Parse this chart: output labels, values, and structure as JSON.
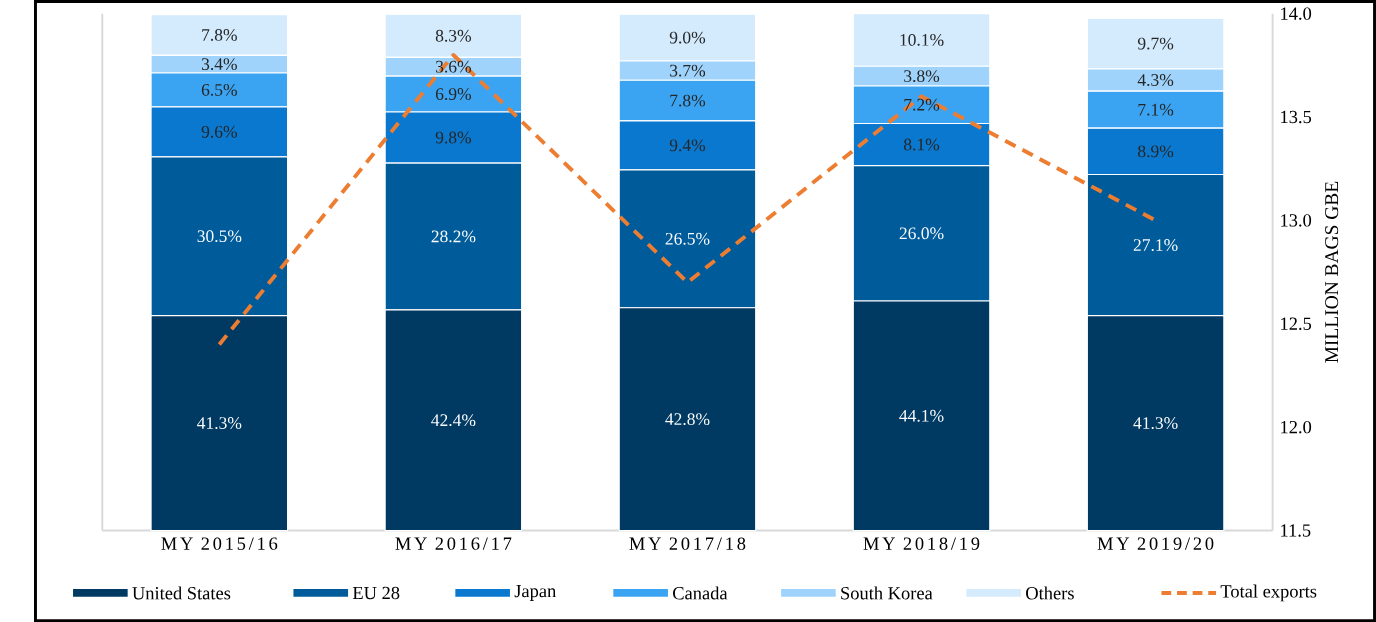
{
  "chart_data": {
    "type": "bar",
    "stacked": true,
    "y2label": "MILLION BAGS GBE",
    "categories": [
      "MY 2015/16",
      "MY 2016/17",
      "MY 2017/18",
      "MY 2018/19",
      "MY 2019/20"
    ],
    "series": [
      {
        "name": "United States",
        "color": "#003a63",
        "values": [
          41.3,
          42.4,
          42.8,
          44.1,
          41.3
        ],
        "value_labels": [
          "41.3%",
          "42.4%",
          "42.8%",
          "44.1%",
          "41.3%"
        ]
      },
      {
        "name": "EU 28",
        "color": "#005b9a",
        "values": [
          30.5,
          28.2,
          26.5,
          26.0,
          27.1
        ],
        "value_labels": [
          "30.5%",
          "28.2%",
          "26.5%",
          "26.0%",
          "27.1%"
        ]
      },
      {
        "name": "Japan",
        "color": "#0a78cf",
        "values": [
          9.6,
          9.8,
          9.4,
          8.1,
          8.9
        ],
        "value_labels": [
          "9.6%",
          "9.8%",
          "9.4%",
          "8.1%",
          "8.9%"
        ]
      },
      {
        "name": "Canada",
        "color": "#3ba4f2",
        "values": [
          6.5,
          6.9,
          7.8,
          7.2,
          7.1
        ],
        "value_labels": [
          "6.5%",
          "6.9%",
          "7.8%",
          "7.2%",
          "7.1%"
        ]
      },
      {
        "name": "South Korea",
        "color": "#9fd3fb",
        "values": [
          3.4,
          3.6,
          3.7,
          3.8,
          4.3
        ],
        "value_labels": [
          "3.4%",
          "3.6%",
          "3.7%",
          "3.8%",
          "4.3%"
        ]
      },
      {
        "name": "Others",
        "color": "#d3ebfd",
        "values": [
          7.8,
          8.3,
          9.0,
          10.1,
          9.7
        ],
        "value_labels": [
          "7.8%",
          "8.3%",
          "9.0%",
          "10.1%",
          "9.7%"
        ]
      },
      {
        "name": "Total exports",
        "type": "line",
        "axis": "y2",
        "color": "#ed7d31",
        "line_style": "dashed",
        "values": [
          12.4,
          13.8,
          12.7,
          13.6,
          13.0
        ]
      }
    ],
    "y2lim": [
      11.5,
      14.0
    ],
    "y2ticks": [
      {
        "value": 11.5,
        "label": "11.5"
      },
      {
        "value": 12.0,
        "label": "12.0"
      },
      {
        "value": 12.5,
        "label": "12.5"
      },
      {
        "value": 13.0,
        "label": "13.0"
      },
      {
        "value": 13.5,
        "label": "13.5"
      },
      {
        "value": 14.0,
        "label": "14.0"
      }
    ],
    "legend": "bottom"
  }
}
